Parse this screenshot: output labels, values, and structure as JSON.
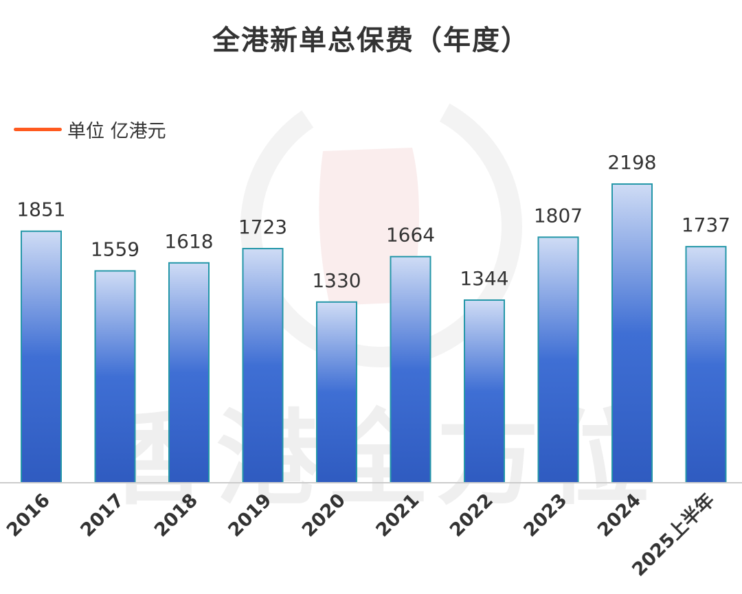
{
  "chart_data": {
    "type": "bar",
    "title": "全港新单总保费（年度）",
    "legend": {
      "label": "单位 亿港元",
      "position": "top-left",
      "color": "#ff5a1f"
    },
    "categories": [
      "2016",
      "2017",
      "2018",
      "2019",
      "2020",
      "2021",
      "2022",
      "2023",
      "2024",
      "2025上半年"
    ],
    "series": [
      {
        "values": [
          1851,
          1559,
          1618,
          1723,
          1330,
          1664,
          1344,
          1807,
          2198,
          1737
        ]
      }
    ],
    "ylim": [
      0,
      2198
    ],
    "grid": false,
    "colors": {
      "bar_top": "#cfdcf5",
      "bar_mid": "#3f6fd4",
      "bar_bottom": "#2f5bc0",
      "bar_outline": "#2497a8",
      "axis": "#cccccc",
      "label": "#333333"
    }
  },
  "watermark": {
    "text": "香港全方位"
  }
}
